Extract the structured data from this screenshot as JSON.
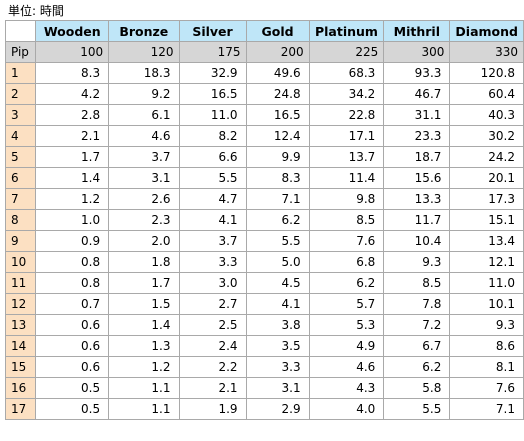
{
  "caption": "単位: 時間",
  "table": {
    "columns": [
      "Wooden",
      "Bronze",
      "Silver",
      "Gold",
      "Platinum",
      "Mithril",
      "Diamond"
    ],
    "price_row_label": "Pip",
    "prices": [
      "100",
      "120",
      "175",
      "200",
      "225",
      "300",
      "330"
    ],
    "rows": [
      {
        "pip": "1",
        "values": [
          "8.3",
          "18.3",
          "32.9",
          "49.6",
          "68.3",
          "93.3",
          "120.8"
        ]
      },
      {
        "pip": "2",
        "values": [
          "4.2",
          "9.2",
          "16.5",
          "24.8",
          "34.2",
          "46.7",
          "60.4"
        ]
      },
      {
        "pip": "3",
        "values": [
          "2.8",
          "6.1",
          "11.0",
          "16.5",
          "22.8",
          "31.1",
          "40.3"
        ]
      },
      {
        "pip": "4",
        "values": [
          "2.1",
          "4.6",
          "8.2",
          "12.4",
          "17.1",
          "23.3",
          "30.2"
        ]
      },
      {
        "pip": "5",
        "values": [
          "1.7",
          "3.7",
          "6.6",
          "9.9",
          "13.7",
          "18.7",
          "24.2"
        ]
      },
      {
        "pip": "6",
        "values": [
          "1.4",
          "3.1",
          "5.5",
          "8.3",
          "11.4",
          "15.6",
          "20.1"
        ]
      },
      {
        "pip": "7",
        "values": [
          "1.2",
          "2.6",
          "4.7",
          "7.1",
          "9.8",
          "13.3",
          "17.3"
        ]
      },
      {
        "pip": "8",
        "values": [
          "1.0",
          "2.3",
          "4.1",
          "6.2",
          "8.5",
          "11.7",
          "15.1"
        ]
      },
      {
        "pip": "9",
        "values": [
          "0.9",
          "2.0",
          "3.7",
          "5.5",
          "7.6",
          "10.4",
          "13.4"
        ]
      },
      {
        "pip": "10",
        "values": [
          "0.8",
          "1.8",
          "3.3",
          "5.0",
          "6.8",
          "9.3",
          "12.1"
        ]
      },
      {
        "pip": "11",
        "values": [
          "0.8",
          "1.7",
          "3.0",
          "4.5",
          "6.2",
          "8.5",
          "11.0"
        ]
      },
      {
        "pip": "12",
        "values": [
          "0.7",
          "1.5",
          "2.7",
          "4.1",
          "5.7",
          "7.8",
          "10.1"
        ]
      },
      {
        "pip": "13",
        "values": [
          "0.6",
          "1.4",
          "2.5",
          "3.8",
          "5.3",
          "7.2",
          "9.3"
        ]
      },
      {
        "pip": "14",
        "values": [
          "0.6",
          "1.3",
          "2.4",
          "3.5",
          "4.9",
          "6.7",
          "8.6"
        ]
      },
      {
        "pip": "15",
        "values": [
          "0.6",
          "1.2",
          "2.2",
          "3.3",
          "4.6",
          "6.2",
          "8.1"
        ]
      },
      {
        "pip": "16",
        "values": [
          "0.5",
          "1.1",
          "2.1",
          "3.1",
          "4.3",
          "5.8",
          "7.6"
        ]
      },
      {
        "pip": "17",
        "values": [
          "0.5",
          "1.1",
          "1.9",
          "2.9",
          "4.0",
          "5.5",
          "7.1"
        ]
      }
    ]
  },
  "colors": {
    "header_bg": "#bfe6f8",
    "price_row_bg": "#d6d6d6",
    "pip_col_bg": "#fce0c2",
    "border": "#a9a9a9"
  }
}
